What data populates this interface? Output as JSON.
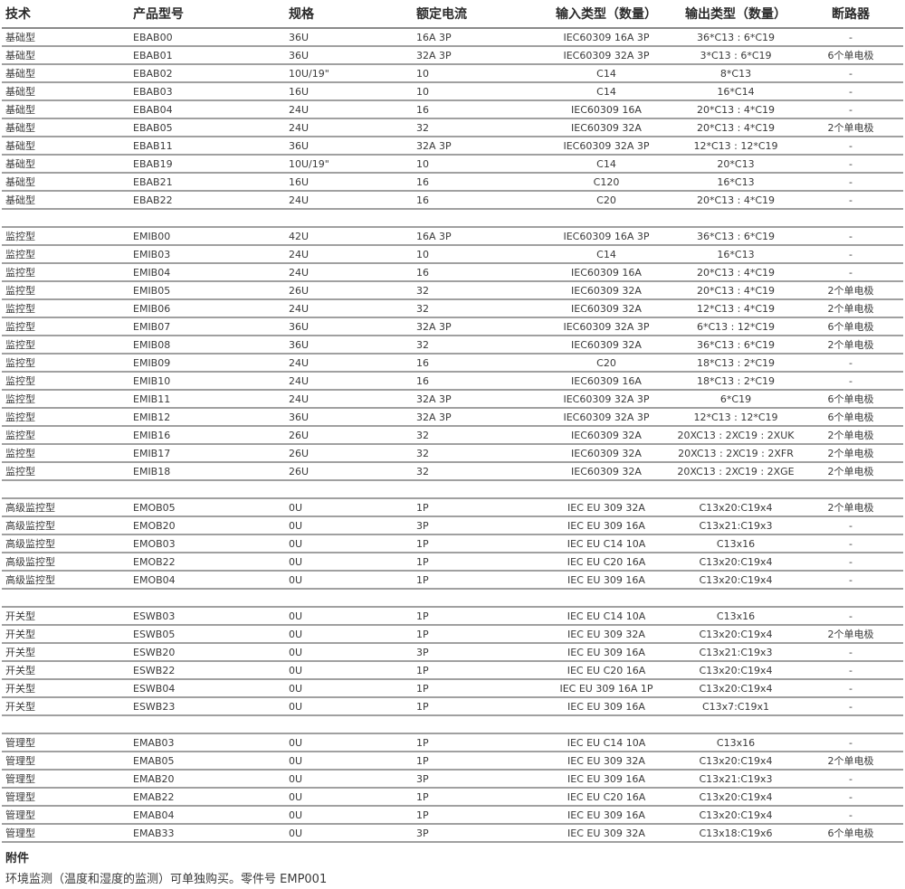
{
  "headers": [
    "技术",
    "产品型号",
    "规格",
    "额定电流",
    "输入类型（数量）",
    "输出类型（数量）",
    "断路器"
  ],
  "groups": [
    [
      [
        "基础型",
        "EBAB00",
        "36U",
        "16A 3P",
        "IEC60309 16A 3P",
        "36*C13 : 6*C19",
        "-"
      ],
      [
        "基础型",
        "EBAB01",
        "36U",
        "32A 3P",
        "IEC60309 32A 3P",
        "3*C13 : 6*C19",
        "6个单电极"
      ],
      [
        "基础型",
        "EBAB02",
        "10U/19\"",
        "10",
        "C14",
        "8*C13",
        "-"
      ],
      [
        "基础型",
        "EBAB03",
        "16U",
        "10",
        "C14",
        "16*C14",
        "-"
      ],
      [
        "基础型",
        "EBAB04",
        "24U",
        "16",
        "IEC60309 16A",
        "20*C13 : 4*C19",
        "-"
      ],
      [
        "基础型",
        "EBAB05",
        "24U",
        "32",
        "IEC60309 32A",
        "20*C13 : 4*C19",
        "2个单电极"
      ],
      [
        "基础型",
        "EBAB11",
        "36U",
        "32A 3P",
        "IEC60309 32A 3P",
        "12*C13 : 12*C19",
        "-"
      ],
      [
        "基础型",
        "EBAB19",
        "10U/19\"",
        "10",
        "C14",
        "20*C13",
        "-"
      ],
      [
        "基础型",
        "EBAB21",
        "16U",
        "16",
        "C120",
        "16*C13",
        "-"
      ],
      [
        "基础型",
        "EBAB22",
        "24U",
        "16",
        "C20",
        "20*C13 : 4*C19",
        "-"
      ]
    ],
    [
      [
        "监控型",
        "EMIB00",
        "42U",
        "16A 3P",
        "IEC60309 16A 3P",
        "36*C13 : 6*C19",
        "-"
      ],
      [
        "监控型",
        "EMIB03",
        "24U",
        "10",
        "C14",
        "16*C13",
        "-"
      ],
      [
        "监控型",
        "EMIB04",
        "24U",
        "16",
        "IEC60309 16A",
        "20*C13 : 4*C19",
        "-"
      ],
      [
        "监控型",
        "EMIB05",
        "26U",
        "32",
        "IEC60309 32A",
        "20*C13 : 4*C19",
        "2个单电极"
      ],
      [
        "监控型",
        "EMIB06",
        "24U",
        "32",
        "IEC60309 32A",
        "12*C13 : 4*C19",
        "2个单电极"
      ],
      [
        "监控型",
        "EMIB07",
        "36U",
        "32A 3P",
        "IEC60309 32A 3P",
        "6*C13 : 12*C19",
        "6个单电极"
      ],
      [
        "监控型",
        "EMIB08",
        "36U",
        "32",
        "IEC60309 32A",
        "36*C13 : 6*C19",
        "2个单电极"
      ],
      [
        "监控型",
        "EMIB09",
        "24U",
        "16",
        "C20",
        "18*C13 : 2*C19",
        "-"
      ],
      [
        "监控型",
        "EMIB10",
        "24U",
        "16",
        "IEC60309 16A",
        "18*C13 : 2*C19",
        "-"
      ],
      [
        "监控型",
        "EMIB11",
        "24U",
        "32A 3P",
        "IEC60309 32A 3P",
        "6*C19",
        "6个单电极"
      ],
      [
        "监控型",
        "EMIB12",
        "36U",
        "32A 3P",
        "IEC60309 32A 3P",
        "12*C13 : 12*C19",
        "6个单电极"
      ],
      [
        "监控型",
        "EMIB16",
        "26U",
        "32",
        "IEC60309 32A",
        "20XC13 : 2XC19 : 2XUK",
        "2个单电极"
      ],
      [
        "监控型",
        "EMIB17",
        "26U",
        "32",
        "IEC60309 32A",
        "20XC13 : 2XC19 : 2XFR",
        "2个单电极"
      ],
      [
        "监控型",
        "EMIB18",
        "26U",
        "32",
        "IEC60309 32A",
        "20XC13 : 2XC19 : 2XGE",
        "2个单电极"
      ]
    ],
    [
      [
        "高级监控型",
        "EMOB05",
        "0U",
        "1P",
        "IEC EU 309 32A",
        "C13x20:C19x4",
        "2个单电极"
      ],
      [
        "高级监控型",
        "EMOB20",
        "0U",
        "3P",
        "IEC EU 309 16A",
        "C13x21:C19x3",
        "-"
      ],
      [
        "高级监控型",
        "EMOB03",
        "0U",
        "1P",
        "IEC EU C14 10A",
        "C13x16",
        "-"
      ],
      [
        "高级监控型",
        "EMOB22",
        "0U",
        "1P",
        "IEC EU C20 16A",
        "C13x20:C19x4",
        "-"
      ],
      [
        "高级监控型",
        "EMOB04",
        "0U",
        "1P",
        "IEC EU 309 16A",
        "C13x20:C19x4",
        "-"
      ]
    ],
    [
      [
        "开关型",
        "ESWB03",
        "0U",
        "1P",
        "IEC EU C14 10A",
        "C13x16",
        "-"
      ],
      [
        "开关型",
        "ESWB05",
        "0U",
        "1P",
        "IEC EU 309 32A",
        "C13x20:C19x4",
        "2个单电极"
      ],
      [
        "开关型",
        "ESWB20",
        "0U",
        "3P",
        "IEC EU 309 16A",
        "C13x21:C19x3",
        "-"
      ],
      [
        "开关型",
        "ESWB22",
        "0U",
        "1P",
        "IEC EU C20 16A",
        "C13x20:C19x4",
        "-"
      ],
      [
        "开关型",
        "ESWB04",
        "0U",
        "1P",
        "IEC EU 309 16A 1P",
        "C13x20:C19x4",
        "-"
      ],
      [
        "开关型",
        "ESWB23",
        "0U",
        "1P",
        "IEC EU 309 16A",
        "C13x7:C19x1",
        "-"
      ]
    ],
    [
      [
        "管理型",
        "EMAB03",
        "0U",
        "1P",
        "IEC EU C14 10A",
        "C13x16",
        "-"
      ],
      [
        "管理型",
        "EMAB05",
        "0U",
        "1P",
        "IEC EU 309 32A",
        "C13x20:C19x4",
        "2个单电极"
      ],
      [
        "管理型",
        "EMAB20",
        "0U",
        "3P",
        "IEC EU 309 16A",
        "C13x21:C19x3",
        "-"
      ],
      [
        "管理型",
        "EMAB22",
        "0U",
        "1P",
        "IEC EU C20 16A",
        "C13x20:C19x4",
        "-"
      ],
      [
        "管理型",
        "EMAB04",
        "0U",
        "1P",
        "IEC EU 309 16A",
        "C13x20:C19x4",
        "-"
      ],
      [
        "管理型",
        "EMAB33",
        "0U",
        "3P",
        "IEC EU 309 32A",
        "C13x18:C19x6",
        "6个单电极"
      ]
    ]
  ],
  "notes": {
    "title": "附件",
    "text": "环境监测（温度和湿度的监测）可单独购买。零件号 EMP001"
  }
}
